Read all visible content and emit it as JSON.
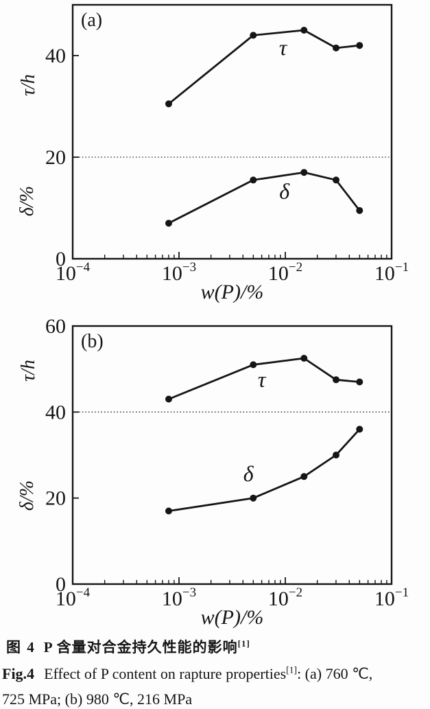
{
  "colors": {
    "line": "#151515",
    "background": "#fdfdfd",
    "divider": "#2a2a2a"
  },
  "chart_data": [
    {
      "type": "line",
      "panel": "(a)",
      "xscale": "log",
      "xlim": [
        0.0001,
        0.1
      ],
      "xtick_exponents": [
        -4,
        -3,
        -2,
        -1
      ],
      "xlabel": "w(P)/%",
      "ylim": [
        0,
        50
      ],
      "yticks": [
        0,
        20,
        40
      ],
      "ylabel_top": "τ/h",
      "ylabel_bottom": "δ/%",
      "divider_y": 20,
      "grid": "none",
      "legend": "inline-labels",
      "x": [
        0.0008,
        0.005,
        0.015,
        0.03,
        0.05
      ],
      "series": [
        {
          "name": "τ",
          "values": [
            30.5,
            44,
            45,
            41.5,
            42
          ],
          "label_x": 0.0095,
          "label_y": 41.5
        },
        {
          "name": "δ",
          "values": [
            7,
            15.5,
            17,
            15.5,
            9.5
          ],
          "label_x": 0.0098,
          "label_y": 13.2
        }
      ]
    },
    {
      "type": "line",
      "panel": "(b)",
      "xscale": "log",
      "xlim": [
        0.0001,
        0.1
      ],
      "xtick_exponents": [
        -4,
        -3,
        -2,
        -1
      ],
      "xlabel": "w(P)/%",
      "ylim": [
        0,
        60
      ],
      "yticks": [
        0,
        20,
        40,
        60
      ],
      "ylabel_top": "τ/h",
      "ylabel_bottom": "δ/%",
      "divider_y": 40,
      "grid": "none",
      "legend": "inline-labels",
      "x": [
        0.0008,
        0.005,
        0.015,
        0.03,
        0.05
      ],
      "series": [
        {
          "name": "τ",
          "values": [
            43,
            51,
            52.5,
            47.5,
            47
          ],
          "label_x": 0.006,
          "label_y": 47.5
        },
        {
          "name": "δ",
          "values": [
            17,
            20,
            25,
            30,
            36
          ],
          "label_x": 0.0045,
          "label_y": 25.5
        }
      ]
    }
  ],
  "caption": {
    "zh": {
      "prefix": "图 4",
      "text": "P 含量对合金持久性能的影响",
      "sup": "[1]"
    },
    "en": {
      "prefix": "Fig.4",
      "text": "Effect of P content on rapture properties",
      "sup": "[1]",
      "tail": ": (a) 760 ℃,",
      "line2": "725 MPa; (b) 980 ℃, 216 MPa"
    }
  }
}
